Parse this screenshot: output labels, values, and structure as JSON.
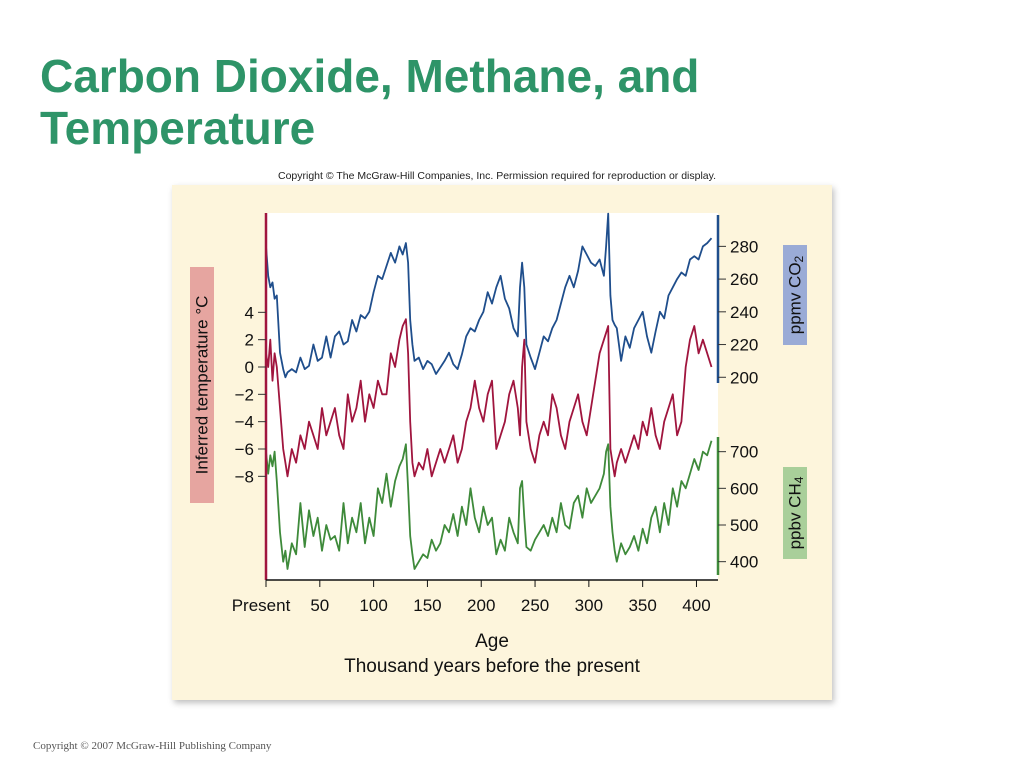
{
  "slide": {
    "title_line1": "Carbon Dioxide, Methane, and",
    "title_line2": "Temperature",
    "figure_copyright": "Copyright © The McGraw-Hill Companies, Inc. Permission required for reproduction or display.",
    "footer": "Copyright © 2007 McGraw-Hill Publishing Company"
  },
  "chart_data": {
    "type": "line",
    "title": "",
    "xlabel": "Age",
    "xlabel_sub": "Thousand years before the present",
    "xlim": [
      0,
      420
    ],
    "x_ticks": [
      {
        "value": 0,
        "label": "Present"
      },
      {
        "value": 50,
        "label": "50"
      },
      {
        "value": 100,
        "label": "100"
      },
      {
        "value": 150,
        "label": "150"
      },
      {
        "value": 200,
        "label": "200"
      },
      {
        "value": 250,
        "label": "250"
      },
      {
        "value": 300,
        "label": "300"
      },
      {
        "value": 350,
        "label": "350"
      },
      {
        "value": 400,
        "label": "400"
      }
    ],
    "grid": false,
    "axes": {
      "co2": {
        "label": "ppmv CO",
        "label_sub": "2",
        "ylim": [
          180,
          290
        ],
        "ticks": [
          200,
          220,
          240,
          260,
          280
        ],
        "color": "#1f4e8c",
        "label_bg": "#9aabd6"
      },
      "temperature": {
        "label": "Inferred temperature °C",
        "ylim": [
          -9,
          6
        ],
        "ticks": [
          4,
          2,
          0,
          -2,
          -4,
          -6,
          -8
        ],
        "tick_labels": [
          "4",
          "2",
          "0",
          "−2",
          "−4",
          "−6",
          "−8"
        ],
        "color": "#a0153e",
        "label_bg": "#e6a5a0"
      },
      "ch4": {
        "label": "ppbv CH",
        "label_sub": "4",
        "ylim": [
          350,
          800
        ],
        "ticks": [
          400,
          500,
          600,
          700
        ],
        "color": "#3e8a3a",
        "label_bg": "#a9cf9a"
      }
    },
    "series": [
      {
        "name": "CO2",
        "color": "#1f4e8c",
        "x": [
          0,
          2,
          4,
          6,
          8,
          10,
          13,
          16,
          18,
          20,
          24,
          28,
          32,
          36,
          40,
          44,
          48,
          52,
          56,
          60,
          64,
          68,
          72,
          76,
          80,
          84,
          88,
          92,
          96,
          100,
          104,
          108,
          112,
          116,
          120,
          124,
          127,
          130,
          132,
          134,
          136,
          138,
          142,
          146,
          150,
          154,
          158,
          162,
          166,
          170,
          174,
          178,
          182,
          186,
          190,
          194,
          198,
          202,
          206,
          210,
          214,
          218,
          222,
          226,
          230,
          234,
          236,
          238,
          240,
          242,
          246,
          250,
          254,
          258,
          262,
          266,
          270,
          274,
          278,
          282,
          286,
          290,
          294,
          298,
          302,
          306,
          310,
          314,
          316,
          318,
          320,
          322,
          324,
          326,
          330,
          334,
          338,
          342,
          346,
          350,
          354,
          358,
          362,
          366,
          370,
          374,
          378,
          382,
          386,
          390,
          394,
          398,
          402,
          406,
          410,
          414
        ],
        "values": [
          280,
          262,
          255,
          258,
          248,
          250,
          215,
          205,
          200,
          203,
          205,
          203,
          212,
          205,
          207,
          220,
          210,
          212,
          225,
          212,
          225,
          228,
          220,
          222,
          235,
          228,
          238,
          236,
          240,
          252,
          262,
          260,
          268,
          276,
          270,
          280,
          275,
          282,
          270,
          235,
          220,
          210,
          212,
          205,
          210,
          208,
          202,
          206,
          210,
          215,
          208,
          205,
          214,
          225,
          230,
          228,
          235,
          240,
          252,
          245,
          255,
          262,
          248,
          242,
          230,
          225,
          255,
          270,
          255,
          220,
          212,
          205,
          215,
          225,
          222,
          230,
          235,
          245,
          255,
          262,
          255,
          265,
          280,
          275,
          270,
          268,
          272,
          262,
          280,
          300,
          250,
          235,
          232,
          230,
          210,
          225,
          218,
          230,
          235,
          240,
          225,
          215,
          228,
          240,
          236,
          250,
          255,
          260,
          264,
          262,
          272,
          274,
          272,
          280,
          282,
          285
        ]
      },
      {
        "name": "Temperature",
        "color": "#a0153e",
        "x": [
          0,
          2,
          4,
          6,
          8,
          10,
          13,
          16,
          18,
          20,
          24,
          28,
          32,
          36,
          40,
          44,
          48,
          52,
          56,
          60,
          64,
          68,
          72,
          76,
          80,
          84,
          88,
          92,
          96,
          100,
          104,
          108,
          112,
          116,
          120,
          124,
          127,
          130,
          132,
          134,
          136,
          138,
          142,
          146,
          150,
          154,
          158,
          162,
          166,
          170,
          174,
          178,
          182,
          186,
          190,
          194,
          198,
          202,
          206,
          210,
          214,
          218,
          222,
          226,
          230,
          234,
          236,
          238,
          240,
          242,
          246,
          250,
          254,
          258,
          262,
          266,
          270,
          274,
          278,
          282,
          286,
          290,
          294,
          298,
          302,
          306,
          310,
          314,
          316,
          318,
          320,
          322,
          324,
          326,
          330,
          334,
          338,
          342,
          346,
          350,
          354,
          358,
          362,
          366,
          370,
          374,
          378,
          382,
          386,
          390,
          394,
          398,
          402,
          406,
          410,
          414
        ],
        "values": [
          1,
          0,
          2,
          -1,
          1,
          0,
          -3,
          -6,
          -7,
          -8,
          -6,
          -7,
          -5,
          -6,
          -4,
          -5,
          -6,
          -3,
          -5,
          -4,
          -3,
          -5,
          -6,
          -2,
          -4,
          -3,
          -1,
          -4,
          -2,
          -3,
          -1,
          -2,
          -2,
          1,
          0,
          2,
          3,
          3.5,
          1,
          -4,
          -7,
          -8,
          -7,
          -7.5,
          -6,
          -8,
          -7,
          -6,
          -7,
          -6,
          -5,
          -7,
          -6,
          -4,
          -3,
          -1,
          -3,
          -4,
          -2,
          -1,
          -6,
          -5,
          -4,
          -2,
          -1,
          -3,
          -5,
          0,
          2,
          -4,
          -6,
          -7,
          -5,
          -4,
          -5,
          -2,
          -3,
          -5,
          -6,
          -4,
          -3,
          -2,
          -4,
          -5,
          -3,
          -1,
          1,
          2,
          2.5,
          3,
          -6,
          -7,
          -8,
          -7,
          -6,
          -7,
          -6,
          -5,
          -6,
          -4,
          -5,
          -3,
          -5,
          -6,
          -4,
          -3,
          -2,
          -5,
          -4,
          0,
          2,
          3,
          1,
          2,
          1,
          0
        ]
      },
      {
        "name": "CH4",
        "color": "#3e8a3a",
        "x": [
          0,
          2,
          4,
          6,
          8,
          10,
          13,
          16,
          18,
          20,
          24,
          28,
          32,
          36,
          40,
          44,
          48,
          52,
          56,
          60,
          64,
          68,
          72,
          76,
          80,
          84,
          88,
          92,
          96,
          100,
          104,
          108,
          112,
          116,
          120,
          124,
          127,
          130,
          132,
          134,
          136,
          138,
          142,
          146,
          150,
          154,
          158,
          162,
          166,
          170,
          174,
          178,
          182,
          186,
          190,
          194,
          198,
          202,
          206,
          210,
          214,
          218,
          222,
          226,
          230,
          234,
          236,
          238,
          240,
          242,
          246,
          250,
          254,
          258,
          262,
          266,
          270,
          274,
          278,
          282,
          286,
          290,
          294,
          298,
          302,
          306,
          310,
          314,
          316,
          318,
          320,
          322,
          324,
          326,
          330,
          334,
          338,
          342,
          346,
          350,
          354,
          358,
          362,
          366,
          370,
          374,
          378,
          382,
          386,
          390,
          394,
          398,
          402,
          406,
          410,
          414
        ],
        "values": [
          700,
          640,
          690,
          660,
          700,
          620,
          480,
          400,
          430,
          380,
          450,
          420,
          560,
          440,
          540,
          470,
          520,
          430,
          500,
          460,
          470,
          430,
          560,
          450,
          520,
          480,
          560,
          450,
          520,
          470,
          600,
          560,
          640,
          550,
          620,
          660,
          680,
          720,
          600,
          470,
          420,
          380,
          400,
          420,
          410,
          460,
          430,
          450,
          500,
          480,
          530,
          470,
          550,
          500,
          600,
          520,
          480,
          550,
          500,
          520,
          420,
          460,
          430,
          520,
          480,
          450,
          600,
          620,
          520,
          440,
          430,
          460,
          480,
          500,
          470,
          520,
          480,
          560,
          500,
          490,
          560,
          580,
          520,
          600,
          560,
          580,
          600,
          640,
          700,
          720,
          550,
          480,
          430,
          400,
          450,
          420,
          440,
          470,
          430,
          490,
          450,
          520,
          550,
          480,
          560,
          500,
          600,
          550,
          620,
          600,
          640,
          680,
          650,
          700,
          690,
          730
        ]
      }
    ]
  }
}
